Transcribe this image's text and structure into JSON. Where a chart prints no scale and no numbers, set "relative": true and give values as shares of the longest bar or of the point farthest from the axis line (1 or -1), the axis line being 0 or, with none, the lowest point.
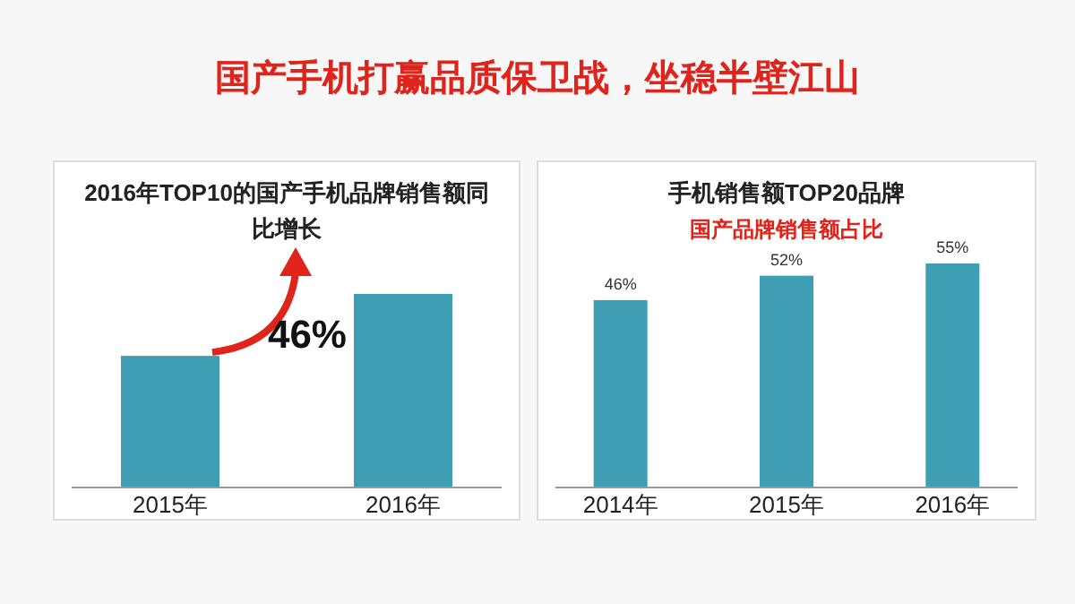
{
  "chart_data": [
    {
      "type": "other",
      "title": "国产手机打赢品质保卫战，坐稳半壁江山"
    },
    {
      "type": "bar",
      "title": "2016年TOP10的国产手机品牌销售额同比增长",
      "categories": [
        "2015年",
        "2016年"
      ],
      "values": [
        0.68,
        1
      ],
      "relative": true,
      "color": "#3e9fb4",
      "annotations": [
        "46%"
      ]
    },
    {
      "type": "bar",
      "title": "手机销售额TOP20品牌",
      "subtitle": "国产品牌销售额占比",
      "categories": [
        "2014年",
        "2015年",
        "2016年"
      ],
      "values": [
        46,
        52,
        55
      ],
      "color": "#3e9fb4",
      "value_labels": [
        "46%",
        "52%",
        "55%"
      ]
    }
  ]
}
